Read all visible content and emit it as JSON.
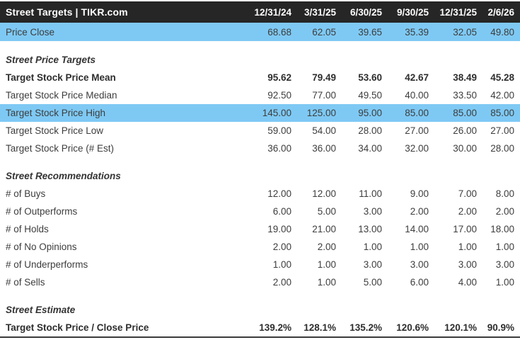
{
  "table": {
    "title": "Street Targets | TIKR.com",
    "columns": [
      "12/31/24",
      "3/31/25",
      "6/30/25",
      "9/30/25",
      "12/31/25",
      "2/6/26"
    ],
    "price_close": {
      "label": "Price Close",
      "values": [
        "68.68",
        "62.05",
        "39.65",
        "35.39",
        "32.05",
        "49.80"
      ],
      "style": "highlight"
    },
    "sections": [
      {
        "heading": "Street Price Targets",
        "rows": [
          {
            "label": "Target Stock Price Mean",
            "values": [
              "95.62",
              "79.49",
              "53.60",
              "42.67",
              "38.49",
              "45.28"
            ],
            "style": "bold"
          },
          {
            "label": "Target Stock Price Median",
            "values": [
              "92.50",
              "77.00",
              "49.50",
              "40.00",
              "33.50",
              "42.00"
            ],
            "style": "normal"
          },
          {
            "label": "Target Stock Price High",
            "values": [
              "145.00",
              "125.00",
              "95.00",
              "85.00",
              "85.00",
              "85.00"
            ],
            "style": "highlight"
          },
          {
            "label": "Target Stock Price Low",
            "values": [
              "59.00",
              "54.00",
              "28.00",
              "27.00",
              "26.00",
              "27.00"
            ],
            "style": "normal"
          },
          {
            "label": "Target Stock Price (# Est)",
            "values": [
              "36.00",
              "36.00",
              "34.00",
              "32.00",
              "30.00",
              "28.00"
            ],
            "style": "normal"
          }
        ]
      },
      {
        "heading": "Street Recommendations",
        "rows": [
          {
            "label": "# of Buys",
            "values": [
              "12.00",
              "12.00",
              "11.00",
              "9.00",
              "7.00",
              "8.00"
            ],
            "style": "normal"
          },
          {
            "label": "# of Outperforms",
            "values": [
              "6.00",
              "5.00",
              "3.00",
              "2.00",
              "2.00",
              "2.00"
            ],
            "style": "normal"
          },
          {
            "label": "# of Holds",
            "values": [
              "19.00",
              "21.00",
              "13.00",
              "14.00",
              "17.00",
              "18.00"
            ],
            "style": "normal"
          },
          {
            "label": "# of No Opinions",
            "values": [
              "2.00",
              "2.00",
              "1.00",
              "1.00",
              "1.00",
              "1.00"
            ],
            "style": "normal"
          },
          {
            "label": "# of Underperforms",
            "values": [
              "1.00",
              "1.00",
              "3.00",
              "3.00",
              "3.00",
              "3.00"
            ],
            "style": "normal"
          },
          {
            "label": "# of Sells",
            "values": [
              "2.00",
              "1.00",
              "5.00",
              "6.00",
              "4.00",
              "1.00"
            ],
            "style": "normal"
          }
        ]
      },
      {
        "heading": "Street Estimate",
        "rows": [
          {
            "label": "Target Stock Price / Close Price",
            "values": [
              "139.2%",
              "128.1%",
              "135.2%",
              "120.6%",
              "120.1%",
              "90.9%"
            ],
            "style": "bold"
          }
        ]
      }
    ],
    "colors": {
      "header_bg": "#262626",
      "header_text": "#ffffff",
      "highlight_blue": "#7ec9f4",
      "body_text": "#3d3d3d",
      "bottom_rule": "#3b3b3b"
    }
  },
  "chart_data": {
    "type": "table",
    "title": "Street Targets | TIKR.com",
    "columns": [
      "12/31/24",
      "3/31/25",
      "6/30/25",
      "9/30/25",
      "12/31/25",
      "2/6/26"
    ],
    "rows": [
      {
        "label": "Price Close",
        "values": [
          68.68,
          62.05,
          39.65,
          35.39,
          32.05,
          49.8
        ]
      },
      {
        "label": "Target Stock Price Mean",
        "values": [
          95.62,
          79.49,
          53.6,
          42.67,
          38.49,
          45.28
        ]
      },
      {
        "label": "Target Stock Price Median",
        "values": [
          92.5,
          77.0,
          49.5,
          40.0,
          33.5,
          42.0
        ]
      },
      {
        "label": "Target Stock Price High",
        "values": [
          145.0,
          125.0,
          95.0,
          85.0,
          85.0,
          85.0
        ]
      },
      {
        "label": "Target Stock Price Low",
        "values": [
          59.0,
          54.0,
          28.0,
          27.0,
          26.0,
          27.0
        ]
      },
      {
        "label": "Target Stock Price (# Est)",
        "values": [
          36.0,
          36.0,
          34.0,
          32.0,
          30.0,
          28.0
        ]
      },
      {
        "label": "# of Buys",
        "values": [
          12.0,
          12.0,
          11.0,
          9.0,
          7.0,
          8.0
        ]
      },
      {
        "label": "# of Outperforms",
        "values": [
          6.0,
          5.0,
          3.0,
          2.0,
          2.0,
          2.0
        ]
      },
      {
        "label": "# of Holds",
        "values": [
          19.0,
          21.0,
          13.0,
          14.0,
          17.0,
          18.0
        ]
      },
      {
        "label": "# of No Opinions",
        "values": [
          2.0,
          2.0,
          1.0,
          1.0,
          1.0,
          1.0
        ]
      },
      {
        "label": "# of Underperforms",
        "values": [
          1.0,
          1.0,
          3.0,
          3.0,
          3.0,
          3.0
        ]
      },
      {
        "label": "# of Sells",
        "values": [
          2.0,
          1.0,
          5.0,
          6.0,
          4.0,
          1.0
        ]
      },
      {
        "label": "Target Stock Price / Close Price",
        "values": [
          "139.2%",
          "128.1%",
          "135.2%",
          "120.6%",
          "120.1%",
          "90.9%"
        ]
      }
    ]
  }
}
